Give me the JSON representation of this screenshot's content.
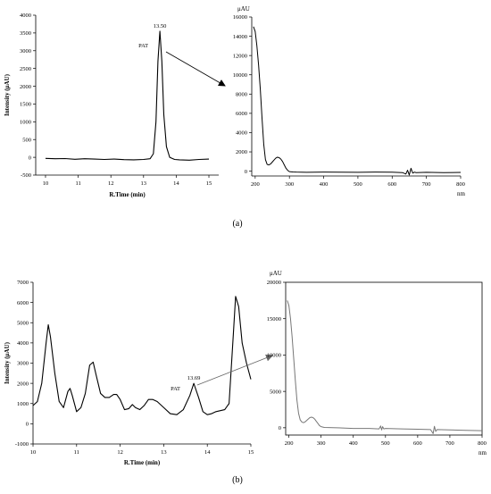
{
  "panels": [
    {
      "label": "(a)",
      "chromatogram": {
        "type": "line",
        "xlabel": "R.Time (min)",
        "ylabel": "Intensity (μAU)",
        "xlim": [
          9.7,
          15.3
        ],
        "ylim": [
          -500,
          4000
        ],
        "xticks": [
          10,
          11,
          12,
          13,
          14,
          15
        ],
        "yticks": [
          -500,
          0,
          500,
          1000,
          1500,
          2000,
          2500,
          3000,
          3500,
          4000
        ],
        "peak_label": "13.50",
        "annotation": "PAT",
        "series": [
          {
            "x": [
              10.0,
              10.3,
              10.6,
              10.9,
              11.2,
              11.5,
              11.8,
              12.1,
              12.4,
              12.7,
              13.0,
              13.2,
              13.3,
              13.38,
              13.44,
              13.5,
              13.56,
              13.62,
              13.7,
              13.8,
              13.95,
              14.1,
              14.4,
              14.7,
              15.0
            ],
            "y": [
              -30,
              -40,
              -35,
              -55,
              -40,
              -50,
              -60,
              -50,
              -65,
              -70,
              -60,
              -40,
              100,
              1000,
              2700,
              3550,
              2700,
              1200,
              300,
              0,
              -60,
              -70,
              -80,
              -60,
              -50
            ]
          }
        ]
      },
      "spectrum": {
        "type": "line",
        "unit_label": "μAU",
        "xlabel": "nm",
        "xlim": [
          190,
          800
        ],
        "ylim": [
          -500,
          16000
        ],
        "xticks": [
          200,
          300,
          400,
          500,
          600,
          700,
          800
        ],
        "yticks": [
          0,
          2000,
          4000,
          6000,
          8000,
          10000,
          12000,
          14000,
          16000
        ],
        "series": [
          {
            "x": [
              195,
              200,
              205,
              210,
              215,
              220,
              225,
              230,
              235,
              240,
              245,
              250,
              255,
              260,
              265,
              270,
              275,
              280,
              285,
              290,
              295,
              300,
              310,
              320,
              350,
              400,
              450,
              500,
              550,
              600,
              630,
              640,
              645,
              650,
              655,
              660,
              665,
              670,
              700,
              750,
              800
            ],
            "y": [
              15000,
              14500,
              13000,
              11000,
              8500,
              5500,
              2800,
              1200,
              700,
              650,
              750,
              950,
              1150,
              1350,
              1450,
              1400,
              1250,
              1000,
              650,
              300,
              80,
              -50,
              -80,
              -100,
              -120,
              -100,
              -110,
              -120,
              -100,
              -110,
              -150,
              -300,
              100,
              -400,
              300,
              -200,
              -100,
              -150,
              -120,
              -150,
              -130
            ]
          }
        ]
      }
    },
    {
      "label": "(b)",
      "chromatogram": {
        "type": "line",
        "xlabel": "R.Time (min)",
        "ylabel": "Intensity (μAU)",
        "xlim": [
          10,
          15
        ],
        "ylim": [
          -1000,
          7000
        ],
        "xticks": [
          10,
          11,
          12,
          13,
          14,
          15
        ],
        "yticks": [
          -1000,
          0,
          1000,
          2000,
          3000,
          4000,
          5000,
          6000,
          7000
        ],
        "peak_label": "13.69",
        "annotation": "PAT",
        "series": [
          {
            "x": [
              10.0,
              10.1,
              10.2,
              10.3,
              10.35,
              10.4,
              10.5,
              10.6,
              10.7,
              10.8,
              10.85,
              10.9,
              11.0,
              11.1,
              11.2,
              11.3,
              11.38,
              11.45,
              11.55,
              11.65,
              11.75,
              11.85,
              11.92,
              12.0,
              12.1,
              12.2,
              12.28,
              12.35,
              12.45,
              12.55,
              12.65,
              12.75,
              12.85,
              13.0,
              13.15,
              13.3,
              13.45,
              13.6,
              13.69,
              13.8,
              13.9,
              14.0,
              14.1,
              14.2,
              14.3,
              14.4,
              14.5,
              14.6,
              14.65,
              14.72,
              14.8,
              14.9,
              15.0
            ],
            "y": [
              900,
              1100,
              2000,
              4000,
              4900,
              4300,
              2500,
              1100,
              800,
              1600,
              1750,
              1400,
              600,
              800,
              1500,
              2900,
              3050,
              2400,
              1500,
              1300,
              1300,
              1450,
              1450,
              1200,
              700,
              750,
              950,
              800,
              700,
              900,
              1200,
              1200,
              1100,
              800,
              500,
              450,
              700,
              1400,
              2000,
              1300,
              600,
              450,
              500,
              600,
              650,
              700,
              1000,
              4500,
              6300,
              5800,
              4000,
              3000,
              2200
            ]
          }
        ]
      },
      "spectrum": {
        "type": "line",
        "unit_label": "μAU",
        "xlabel": "nm",
        "xlim": [
          190,
          800
        ],
        "ylim": [
          -1000,
          20000
        ],
        "xticks": [
          200,
          300,
          400,
          500,
          600,
          700,
          800
        ],
        "yticks": [
          0,
          5000,
          10000,
          15000,
          20000
        ],
        "series": [
          {
            "x": [
              195,
              200,
              205,
              210,
              215,
              220,
              225,
              230,
              235,
              240,
              245,
              250,
              255,
              260,
              265,
              270,
              275,
              280,
              285,
              290,
              295,
              300,
              310,
              350,
              400,
              450,
              480,
              485,
              488,
              491,
              495,
              500,
              550,
              600,
              640,
              648,
              652,
              656,
              660,
              700,
              750,
              800
            ],
            "y": [
              17500,
              16800,
              15000,
              12500,
              9500,
              6500,
              3800,
              2000,
              1100,
              800,
              700,
              800,
              1000,
              1200,
              1400,
              1450,
              1400,
              1200,
              900,
              600,
              300,
              150,
              50,
              0,
              -100,
              -100,
              -150,
              250,
              -300,
              150,
              -150,
              -100,
              -150,
              -200,
              -250,
              -800,
              200,
              -500,
              -250,
              -300,
              -350,
              -400
            ]
          }
        ]
      }
    }
  ]
}
